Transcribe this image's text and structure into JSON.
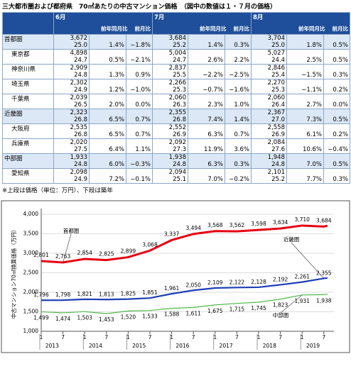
{
  "title": "三大都市圏および都府県　70㎡あたりの中古マンション価格　（図中の数値は１・７月の価格）",
  "table": {
    "months": [
      "6月",
      "7月",
      "8月"
    ],
    "subheaders": [
      "前年同月比",
      "前月比"
    ],
    "rows": [
      {
        "label": "首都圏",
        "level": 0,
        "cells": [
          [
            "3,672",
            "25.0",
            "1.4%",
            "−1.8%"
          ],
          [
            "3,684",
            "25.2",
            "1.4%",
            "0.3%"
          ],
          [
            "3,704",
            "25.0",
            "1.8%",
            "0.5%"
          ]
        ]
      },
      {
        "label": "東京都",
        "level": 1,
        "cells": [
          [
            "4,898",
            "24.7",
            "0.5%",
            "−2.1%"
          ],
          [
            "5,004",
            "24.7",
            "2.6%",
            "2.2%"
          ],
          [
            "5,027",
            "24.4",
            "2.5%",
            "0.5%"
          ]
        ]
      },
      {
        "label": "神奈川県",
        "level": 1,
        "cells": [
          [
            "2,909",
            "24.8",
            "1.3%",
            "0.9%"
          ],
          [
            "2,837",
            "25.5",
            "−2.2%",
            "−2.5%"
          ],
          [
            "2,846",
            "25.4",
            "−1.5%",
            "0.3%"
          ]
        ]
      },
      {
        "label": "埼玉県",
        "level": 1,
        "cells": [
          [
            "2,302",
            "24.9",
            "1.2%",
            "−1.0%"
          ],
          [
            "2,266",
            "25.3",
            "−0.7%",
            "−1.6%"
          ],
          [
            "2,270",
            "25.3",
            "−1.1%",
            "0.2%"
          ]
        ]
      },
      {
        "label": "千葉県",
        "level": 1,
        "cells": [
          [
            "2,039",
            "26.5",
            "2.0%",
            "0.0%"
          ],
          [
            "2,060",
            "26.3",
            "2.3%",
            "1.0%"
          ],
          [
            "2,060",
            "26.4",
            "2.7%",
            "0.0%"
          ]
        ]
      },
      {
        "label": "近畿圏",
        "level": 0,
        "cells": [
          [
            "2,323",
            "26.8",
            "6.5%",
            "0.7%"
          ],
          [
            "2,355",
            "26.8",
            "7.4%",
            "1.4%"
          ],
          [
            "2,367",
            "27.0",
            "7.3%",
            "0.5%"
          ]
        ]
      },
      {
        "label": "大阪府",
        "level": 1,
        "cells": [
          [
            "2,535",
            "26.8",
            "6.5%",
            "0.7%"
          ],
          [
            "2,552",
            "26.9",
            "6.3%",
            "0.7%"
          ],
          [
            "2,558",
            "26.9",
            "6.1%",
            "0.2%"
          ]
        ]
      },
      {
        "label": "兵庫県",
        "level": 1,
        "cells": [
          [
            "2,020",
            "27.5",
            "6.4%",
            "1.1%"
          ],
          [
            "2,092",
            "27.3",
            "11.9%",
            "3.6%"
          ],
          [
            "2,084",
            "27.6",
            "10.6%",
            "−0.4%"
          ]
        ]
      },
      {
        "label": "中部圏",
        "level": 0,
        "cells": [
          [
            "1,933",
            "24.8",
            "6.0%",
            "−0.3%"
          ],
          [
            "1,938",
            "24.8",
            "6.3%",
            "0.3%"
          ],
          [
            "1,948",
            "24.8",
            "7.0%",
            "0.5%"
          ]
        ]
      },
      {
        "label": "愛知県",
        "level": 1,
        "cells": [
          [
            "2,098",
            "24.9",
            "7.2%",
            "−0.1%"
          ],
          [
            "2,094",
            "25.1",
            "7.0%",
            "−0.2%"
          ],
          [
            "2,101",
            "25.2",
            "7.7%",
            "0.3%"
          ]
        ]
      }
    ]
  },
  "note": "※上段は価格（単位：万円）、下段は築年",
  "chart_data": {
    "type": "line",
    "y_label": "中古マンション70㎡換算価格（万円）",
    "x": [
      "2013-01",
      "2013-07",
      "2014-01",
      "2014-07",
      "2015-01",
      "2015-07",
      "2016-01",
      "2016-07",
      "2017-01",
      "2017-07",
      "2018-01",
      "2018-07",
      "2019-01",
      "2019-07",
      "2019-08"
    ],
    "xlim": [
      "2013-01",
      "2019-09"
    ],
    "xticks": [
      {
        "value": "2013-01",
        "label": "1"
      },
      {
        "value": "2013-07",
        "label": "7"
      },
      {
        "value": "2014-01",
        "label": "1"
      },
      {
        "value": "2014-07",
        "label": "7"
      },
      {
        "value": "2015-01",
        "label": "1"
      },
      {
        "value": "2015-07",
        "label": "7"
      },
      {
        "value": "2016-01",
        "label": "1"
      },
      {
        "value": "2016-07",
        "label": "7"
      },
      {
        "value": "2017-01",
        "label": "1"
      },
      {
        "value": "2017-07",
        "label": "7"
      },
      {
        "value": "2018-01",
        "label": "1"
      },
      {
        "value": "2018-07",
        "label": "7"
      },
      {
        "value": "2019-01",
        "label": "1"
      },
      {
        "value": "2019-07",
        "label": "7"
      }
    ],
    "year_labels": [
      "2013",
      "2014",
      "2015",
      "2016",
      "2017",
      "2018",
      "2019"
    ],
    "ylim": [
      1000,
      4000
    ],
    "yticks": [
      {
        "value": 1000,
        "label": "1,000"
      },
      {
        "value": 1500,
        "label": "1,500"
      },
      {
        "value": 2000,
        "label": "2,000"
      },
      {
        "value": 2500,
        "label": "2,500"
      },
      {
        "value": 3000,
        "label": "3,000"
      },
      {
        "value": 3500,
        "label": "3,500"
      },
      {
        "value": 4000,
        "label": "4,000"
      }
    ],
    "grid": true,
    "series": [
      {
        "name": "首都圏",
        "color": "#e60012",
        "values": [
          2801,
          2763,
          2854,
          2825,
          2899,
          3068,
          3337,
          3494,
          3568,
          3562,
          3598,
          3634,
          3710,
          3684,
          3704
        ],
        "value_labels": [
          "2,801",
          "2,763",
          "2,854",
          "2,825",
          "2,899",
          "3,068",
          "3,337",
          "3,494",
          "3,568",
          "3,562",
          "3,598",
          "3,634",
          "3,710",
          "3,684",
          null
        ]
      },
      {
        "name": "近畿圏",
        "color": "#1d3fb5",
        "values": [
          1796,
          1798,
          1821,
          1813,
          1825,
          1851,
          1961,
          2050,
          2109,
          2122,
          2128,
          2192,
          2261,
          2355,
          2367
        ],
        "value_labels": [
          "1,796",
          "1,798",
          "1,821",
          "1,813",
          "1,825",
          "1,851",
          "1,961",
          "2,050",
          "2,109",
          "2,122",
          "2,128",
          "2,192",
          "2,261",
          "2,355",
          null
        ]
      },
      {
        "name": "中部圏",
        "color": "#4fb848",
        "values": [
          1499,
          1474,
          1503,
          1453,
          1520,
          1533,
          1588,
          1611,
          1675,
          1715,
          1745,
          1823,
          1931,
          1938,
          1948
        ],
        "value_labels": [
          "1,499",
          "1,474",
          "1,503",
          "1,453",
          "1,520",
          "1,533",
          "1,588",
          "1,611",
          "1,675",
          "1,715",
          "1,745",
          "1,823",
          "1,931",
          "1,938",
          null
        ]
      }
    ]
  }
}
